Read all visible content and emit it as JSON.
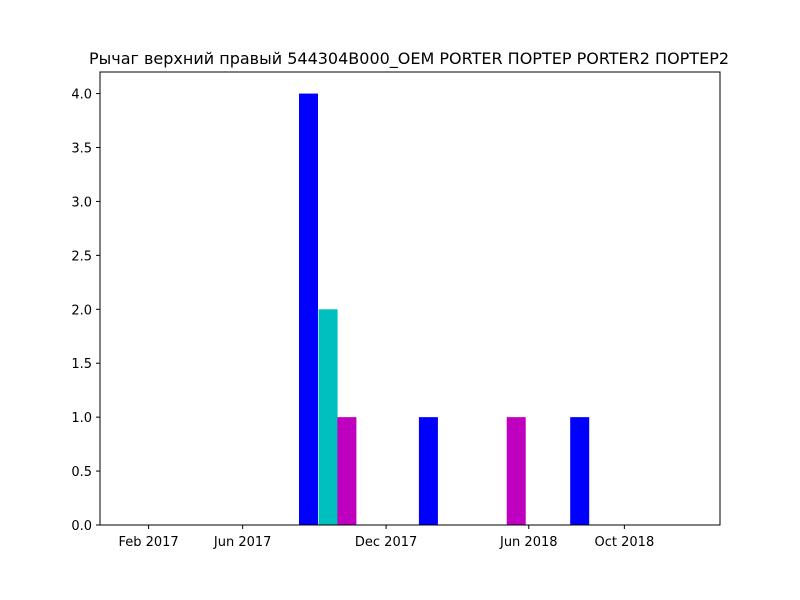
{
  "chart_data": {
    "type": "bar",
    "title": "Рычаг верхний правый 544304B000_OEM PORTER ПОРТЕР PORTER2 ПОРТЕР2",
    "xlabel": "",
    "ylabel": "",
    "grid": false,
    "legend": "none",
    "x_range": [
      "2016-12-01",
      "2019-01-31"
    ],
    "ylim": [
      0,
      4.2
    ],
    "x_ticks": [
      {
        "date": "2017-02-01",
        "label": "Feb 2017"
      },
      {
        "date": "2017-06-01",
        "label": "Jun 2017"
      },
      {
        "date": "2017-12-01",
        "label": "Dec 2017"
      },
      {
        "date": "2018-06-01",
        "label": "Jun 2018"
      },
      {
        "date": "2018-10-01",
        "label": "Oct 2018"
      }
    ],
    "y_ticks": [
      {
        "value": 0,
        "label": "0.0"
      },
      {
        "value": 0.5,
        "label": "0.5"
      },
      {
        "value": 1,
        "label": "1.0"
      },
      {
        "value": 1.5,
        "label": "1.5"
      },
      {
        "value": 2,
        "label": "2.0"
      },
      {
        "value": 2.5,
        "label": "2.5"
      },
      {
        "value": 3,
        "label": "3.0"
      },
      {
        "value": 3.5,
        "label": "3.5"
      },
      {
        "value": 4,
        "label": "4.0"
      }
    ],
    "bars": [
      {
        "date": "2017-08-24",
        "value": 4,
        "color": "#0000ff"
      },
      {
        "date": "2017-09-18",
        "value": 2,
        "color": "#00bfbf"
      },
      {
        "date": "2017-10-12",
        "value": 1,
        "color": "#bf00bf"
      },
      {
        "date": "2018-01-24",
        "value": 1,
        "color": "#0000ff"
      },
      {
        "date": "2018-05-16",
        "value": 1,
        "color": "#bf00bf"
      },
      {
        "date": "2018-08-05",
        "value": 1,
        "color": "#0000ff"
      }
    ]
  }
}
